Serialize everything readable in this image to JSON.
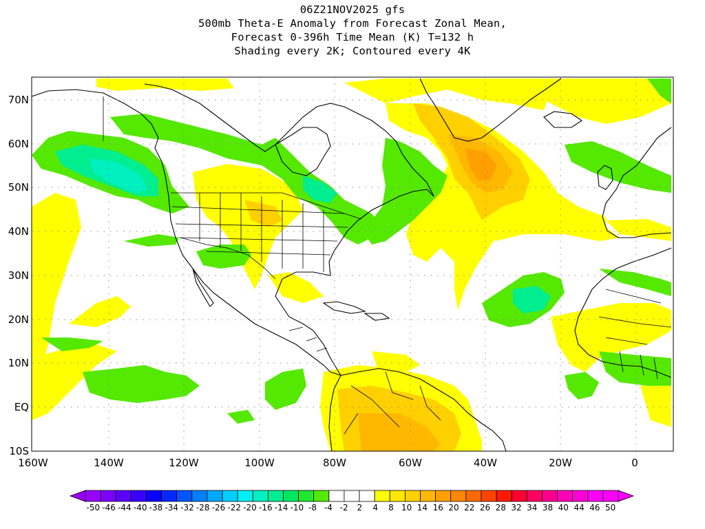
{
  "title": {
    "line1": "06Z21NOV2025 gfs",
    "line2": "500mb Theta-E Anomaly from Forecast Zonal Mean,",
    "line3": "Forecast 0-396h Time Mean (K) T=132 h",
    "line4": "Shading every 2K; Contoured every 4K"
  },
  "map": {
    "lat_labels": [
      "70N",
      "60N",
      "50N",
      "40N",
      "30N",
      "20N",
      "10N",
      "EQ",
      "10S"
    ],
    "lon_labels": [
      "160W",
      "140W",
      "120W",
      "100W",
      "80W",
      "60W",
      "40W",
      "20W",
      "0"
    ],
    "lon_range": [
      -160,
      10
    ],
    "lat_range": [
      -10,
      75
    ]
  },
  "colorbar": {
    "labels": [
      "-50",
      "-46",
      "-44",
      "-40",
      "-38",
      "-34",
      "-32",
      "-28",
      "-26",
      "-22",
      "-20",
      "-16",
      "-14",
      "-10",
      "-8",
      "-4",
      "-2",
      "2",
      "4",
      "8",
      "10",
      "14",
      "16",
      "20",
      "22",
      "26",
      "28",
      "32",
      "34",
      "38",
      "40",
      "44",
      "46",
      "50"
    ],
    "colors": [
      "#9a00ff",
      "#7d00ff",
      "#5b00ff",
      "#3700ff",
      "#0a00ff",
      "#0028ff",
      "#0055ff",
      "#0080ff",
      "#00a8ff",
      "#00cfff",
      "#00f0f0",
      "#00f0c0",
      "#00ee90",
      "#00e860",
      "#20e830",
      "#55e800",
      "#ffffff",
      "#ffffff",
      "#ffffff",
      "#ffff00",
      "#ffe800",
      "#ffd000",
      "#ffb800",
      "#ff9f00",
      "#ff8800",
      "#ff6a00",
      "#ff4400",
      "#ff1a00",
      "#ff0030",
      "#ff0060",
      "#ff0090",
      "#ff00b8",
      "#ff00d8",
      "#ff00ff",
      "#ff00ff"
    ]
  },
  "palette": {
    "green": "#55e800",
    "lightgreen": "#00ee90",
    "cyan": "#00f0c0",
    "yellow": "#ffff00",
    "gold": "#ffd000",
    "orange": "#ffb800",
    "darkorange": "#ff9f00"
  }
}
